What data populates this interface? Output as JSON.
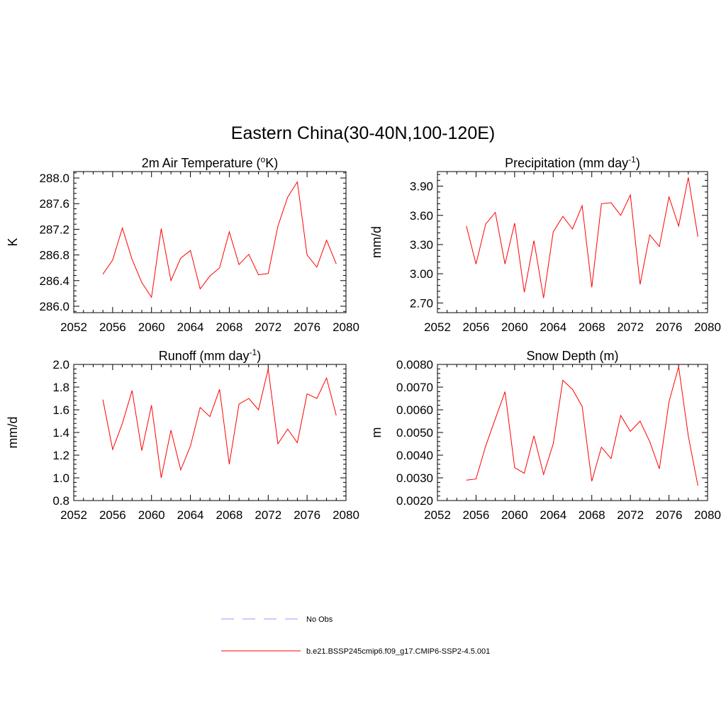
{
  "title": "Eastern China(30-40N,100-120E)",
  "colors": {
    "model": "#ff0000",
    "obs": "#9999ff",
    "axes": "#000000"
  },
  "legend": {
    "entries": [
      {
        "label": "No Obs",
        "style": "dashed",
        "color": "#9999ff"
      },
      {
        "label": "b.e21.BSSP245cmip6.f09_g17.CMIP6-SSP2-4.5.001",
        "style": "solid",
        "color": "#ff0000"
      }
    ]
  },
  "chart_data": [
    {
      "type": "line",
      "title": "2m Air Temperature (",
      "title_sup": "o",
      "title_suffix": "K)",
      "ylabel": "K",
      "xlim": [
        2052,
        2080
      ],
      "ylim": [
        285.9,
        288.1
      ],
      "xticks": [
        "2052",
        "2056",
        "2060",
        "2064",
        "2068",
        "2072",
        "2076",
        "2080"
      ],
      "yticks": [
        "286.0",
        "286.4",
        "286.8",
        "287.2",
        "287.6",
        "288.0"
      ],
      "x": [
        2055,
        2056,
        2057,
        2058,
        2059,
        2060,
        2061,
        2062,
        2063,
        2064,
        2065,
        2066,
        2067,
        2068,
        2069,
        2070,
        2071,
        2072,
        2073,
        2074,
        2075,
        2076,
        2077,
        2078,
        2079
      ],
      "series": [
        {
          "name": "b.e21.BSSP245cmip6.f09_g17.CMIP6-SSP2-4.5.001",
          "values": [
            286.5,
            286.72,
            287.22,
            286.73,
            286.37,
            286.14,
            287.21,
            286.4,
            286.75,
            286.87,
            286.27,
            286.47,
            286.6,
            287.16,
            286.65,
            286.81,
            286.49,
            286.51,
            287.25,
            287.7,
            287.94,
            286.8,
            286.61,
            287.03,
            286.66
          ]
        }
      ]
    },
    {
      "type": "line",
      "title": "Precipitation (mm day",
      "title_sup": "-1",
      "title_suffix": ")",
      "ylabel": "mm/d",
      "xlim": [
        2052,
        2080
      ],
      "ylim": [
        2.6,
        4.05
      ],
      "xticks": [
        "2052",
        "2056",
        "2060",
        "2064",
        "2068",
        "2072",
        "2076",
        "2080"
      ],
      "yticks": [
        "2.70",
        "3.00",
        "3.30",
        "3.60",
        "3.90"
      ],
      "x": [
        2055,
        2056,
        2057,
        2058,
        2059,
        2060,
        2061,
        2062,
        2063,
        2064,
        2065,
        2066,
        2067,
        2068,
        2069,
        2070,
        2071,
        2072,
        2073,
        2074,
        2075,
        2076,
        2077,
        2078,
        2079
      ],
      "series": [
        {
          "name": "b.e21.BSSP245cmip6.f09_g17.CMIP6-SSP2-4.5.001",
          "values": [
            3.49,
            3.1,
            3.51,
            3.63,
            3.1,
            3.52,
            2.81,
            3.34,
            2.75,
            3.43,
            3.59,
            3.46,
            3.7,
            2.86,
            3.72,
            3.73,
            3.6,
            3.81,
            2.89,
            3.4,
            3.28,
            3.79,
            3.49,
            3.99,
            3.38
          ]
        }
      ]
    },
    {
      "type": "line",
      "title": "Runoff (mm day",
      "title_sup": "-1",
      "title_suffix": ")",
      "ylabel": "mm/d",
      "xlim": [
        2052,
        2080
      ],
      "ylim": [
        0.8,
        2.0
      ],
      "xticks": [
        "2052",
        "2056",
        "2060",
        "2064",
        "2068",
        "2072",
        "2076",
        "2080"
      ],
      "yticks": [
        "0.8",
        "1.0",
        "1.2",
        "1.4",
        "1.6",
        "1.8",
        "2.0"
      ],
      "x": [
        2055,
        2056,
        2057,
        2058,
        2059,
        2060,
        2061,
        2062,
        2063,
        2064,
        2065,
        2066,
        2067,
        2068,
        2069,
        2070,
        2071,
        2072,
        2073,
        2074,
        2075,
        2076,
        2077,
        2078,
        2079
      ],
      "series": [
        {
          "name": "b.e21.BSSP245cmip6.f09_g17.CMIP6-SSP2-4.5.001",
          "values": [
            1.69,
            1.25,
            1.48,
            1.77,
            1.24,
            1.64,
            1.0,
            1.42,
            1.07,
            1.28,
            1.62,
            1.54,
            1.78,
            1.12,
            1.65,
            1.7,
            1.6,
            1.96,
            1.3,
            1.43,
            1.31,
            1.74,
            1.7,
            1.88,
            1.55
          ]
        }
      ]
    },
    {
      "type": "line",
      "title": "Snow Depth (m)",
      "title_sup": "",
      "title_suffix": "",
      "ylabel": "m",
      "xlim": [
        2052,
        2080
      ],
      "ylim": [
        0.002,
        0.008
      ],
      "xticks": [
        "2052",
        "2056",
        "2060",
        "2064",
        "2068",
        "2072",
        "2076",
        "2080"
      ],
      "yticks": [
        "0.0020",
        "0.0030",
        "0.0040",
        "0.0050",
        "0.0060",
        "0.0070",
        "0.0080"
      ],
      "x": [
        2055,
        2056,
        2057,
        2058,
        2059,
        2060,
        2061,
        2062,
        2063,
        2064,
        2065,
        2066,
        2067,
        2068,
        2069,
        2070,
        2071,
        2072,
        2073,
        2074,
        2075,
        2076,
        2077,
        2078,
        2079
      ],
      "series": [
        {
          "name": "b.e21.BSSP245cmip6.f09_g17.CMIP6-SSP2-4.5.001",
          "values": [
            0.0029,
            0.00295,
            0.0044,
            0.0056,
            0.0068,
            0.00345,
            0.0032,
            0.00485,
            0.00315,
            0.0045,
            0.0073,
            0.0069,
            0.00615,
            0.00285,
            0.00435,
            0.00385,
            0.00575,
            0.00505,
            0.0055,
            0.0046,
            0.0034,
            0.00635,
            0.0079,
            0.00485,
            0.00265
          ]
        }
      ]
    }
  ]
}
